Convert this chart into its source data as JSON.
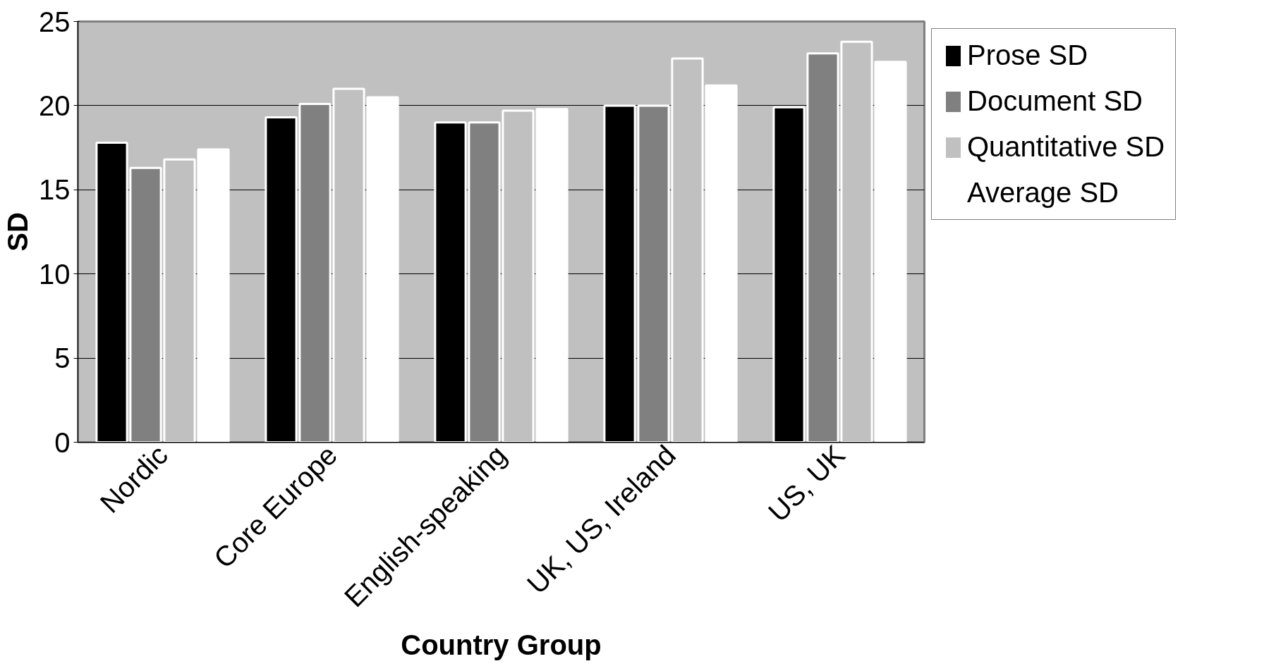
{
  "chart_data": {
    "type": "bar",
    "xlabel": "Country Group",
    "ylabel": "SD",
    "categories": [
      "Nordic",
      "Core Europe",
      "English-speaking",
      "UK, US, Ireland",
      "US, UK"
    ],
    "series": [
      {
        "name": "Prose SD",
        "color": "#000000",
        "values": [
          17.8,
          19.3,
          19.0,
          20.0,
          19.9
        ]
      },
      {
        "name": "Document SD",
        "color": "#808080",
        "values": [
          16.3,
          20.1,
          19.0,
          20.0,
          23.1
        ]
      },
      {
        "name": "Quantitative SD",
        "color": "#c0c0c0",
        "values": [
          16.8,
          21.0,
          19.7,
          22.8,
          23.8
        ]
      },
      {
        "name": "Average SD",
        "color": "#ffffff",
        "values": [
          17.4,
          20.5,
          19.8,
          21.2,
          22.6
        ]
      }
    ],
    "ylim": [
      0,
      25
    ],
    "yticks": [
      0,
      5,
      10,
      15,
      20,
      25
    ],
    "grid": "y",
    "legend": "right"
  }
}
